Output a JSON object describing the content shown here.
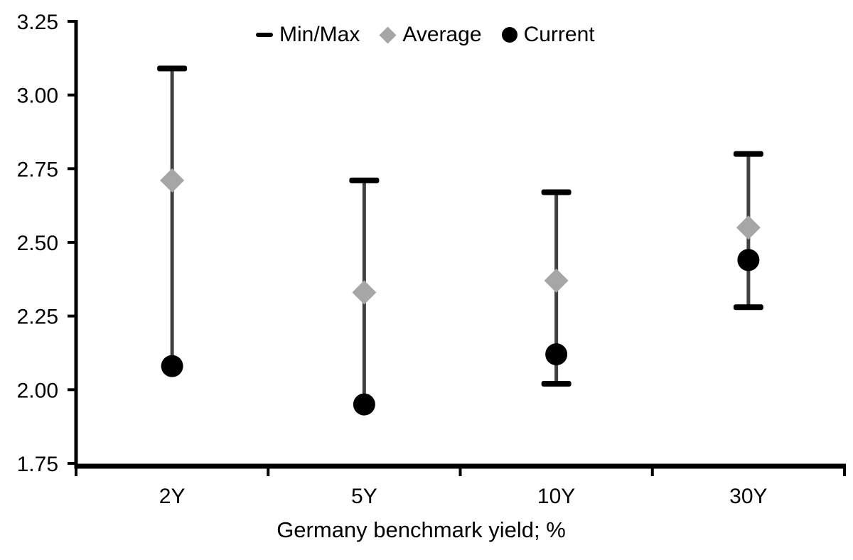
{
  "chart_data": {
    "type": "range_dot",
    "title": "",
    "xlabel": "Germany benchmark yield; %",
    "ylabel": "",
    "categories": [
      "2Y",
      "5Y",
      "10Y",
      "30Y"
    ],
    "series": [
      {
        "name": "Min/Max",
        "role": "range",
        "marker": "dash",
        "min": [
          2.08,
          1.95,
          2.02,
          2.28
        ],
        "max": [
          3.09,
          2.71,
          2.67,
          2.8
        ]
      },
      {
        "name": "Average",
        "role": "point",
        "marker": "diamond",
        "values": [
          2.71,
          2.33,
          2.37,
          2.55
        ]
      },
      {
        "name": "Current",
        "role": "point",
        "marker": "circle",
        "values": [
          2.08,
          1.95,
          2.12,
          2.44
        ]
      }
    ],
    "ylim": [
      1.75,
      3.25
    ],
    "yticks": {
      "values": [
        3.25,
        3.0,
        2.75,
        2.5,
        2.25,
        2.0,
        1.75
      ],
      "labels": [
        "3.25",
        "3.00",
        "2.75",
        "2.50",
        "2.25",
        "2.00",
        "1.75"
      ]
    },
    "grid": false,
    "legend": {
      "position": "top",
      "items": [
        "Min/Max",
        "Average",
        "Current"
      ]
    },
    "colors": {
      "range_line": "#404040",
      "cap": "#000000",
      "average": "#a6a6a6",
      "current": "#000000",
      "axis": "#000000",
      "text": "#000000",
      "background": "#ffffff"
    }
  }
}
